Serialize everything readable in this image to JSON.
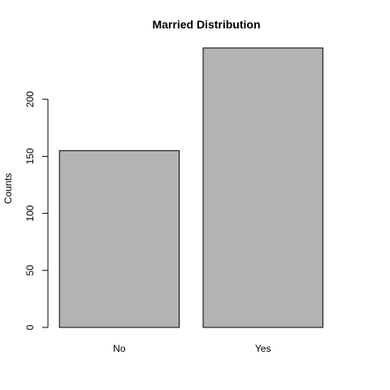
{
  "chart_data": {
    "type": "bar",
    "title": "Married Distribution",
    "xlabel": "",
    "ylabel": "Counts",
    "categories": [
      "No",
      "Yes"
    ],
    "values": [
      155,
      245
    ],
    "ylim": [
      0,
      245
    ],
    "yticks": [
      0,
      50,
      100,
      150,
      200
    ],
    "bar_color": "#b3b3b3",
    "grid": false,
    "legend": "none"
  }
}
